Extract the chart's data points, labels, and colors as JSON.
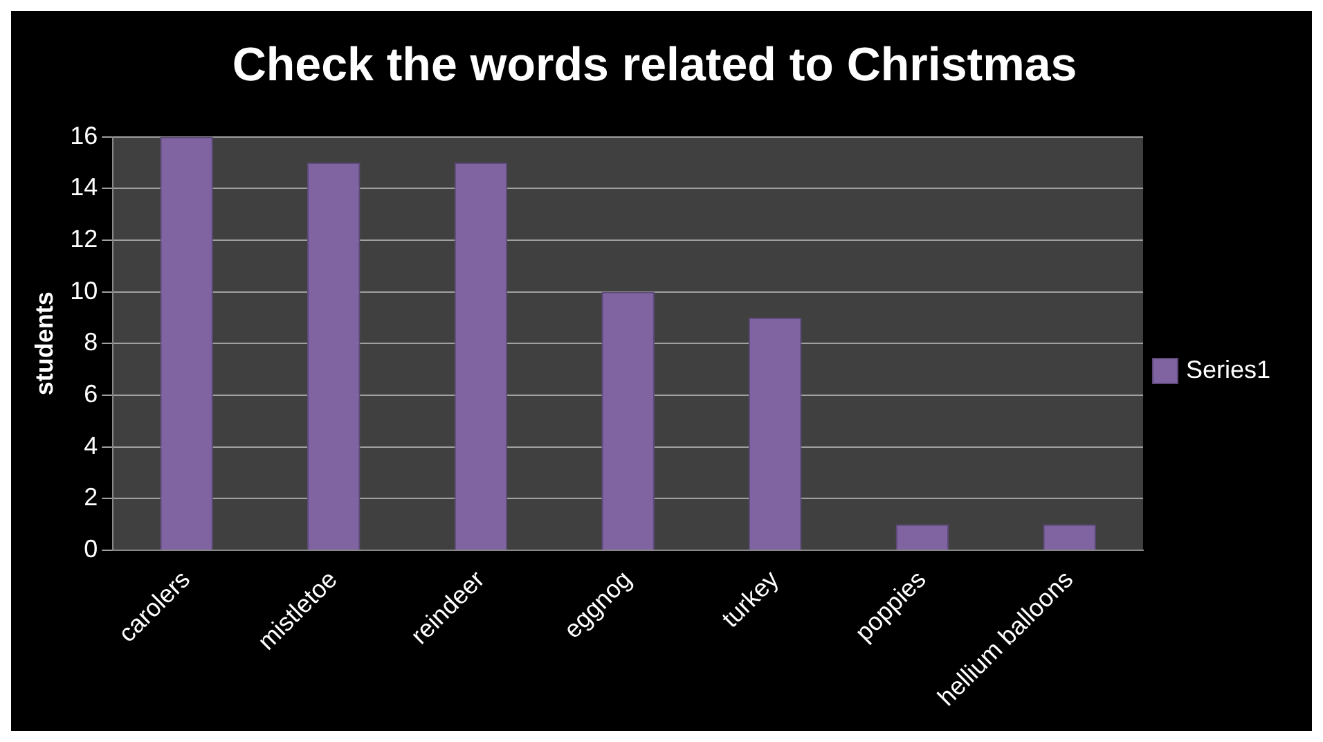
{
  "chart_data": {
    "type": "bar",
    "title": "Check the words related to Christmas",
    "ylabel": "students",
    "categories": [
      "carolers",
      "mistletoe",
      "reindeer",
      "eggnog",
      "turkey",
      "poppies",
      "hellium balloons"
    ],
    "series": [
      {
        "name": "Series1",
        "color": "#8064a2",
        "values": [
          16,
          15,
          15,
          10,
          9,
          1,
          1
        ]
      }
    ],
    "ylim": [
      0,
      16
    ],
    "yticks": [
      0,
      2,
      4,
      6,
      8,
      10,
      12,
      14,
      16
    ],
    "grid": "y",
    "legend": "right"
  }
}
